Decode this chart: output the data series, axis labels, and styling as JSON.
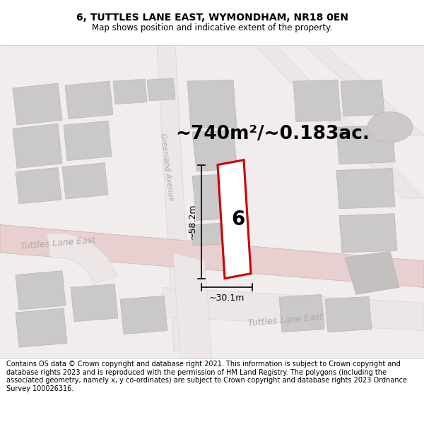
{
  "title": "6, TUTTLES LANE EAST, WYMONDHAM, NR18 0EN",
  "subtitle": "Map shows position and indicative extent of the property.",
  "footer": "Contains OS data © Crown copyright and database right 2021. This information is subject to Crown copyright and database rights 2023 and is reproduced with the permission of HM Land Registry. The polygons (including the associated geometry, namely x, y co-ordinates) are subject to Crown copyright and database rights 2023 Ordnance Survey 100026316.",
  "area_label": "~740m²/~0.183ac.",
  "width_label": "~30.1m",
  "height_label": "~58.2m",
  "property_number": "6",
  "title_fontsize": 10,
  "subtitle_fontsize": 8.5,
  "footer_fontsize": 7.0,
  "area_fontsize": 19,
  "number_fontsize": 20,
  "dim_fontsize": 9,
  "road_label_color": "#b0a8a8",
  "road_label_fontsize": 9,
  "greenland_label_fontsize": 7.5
}
